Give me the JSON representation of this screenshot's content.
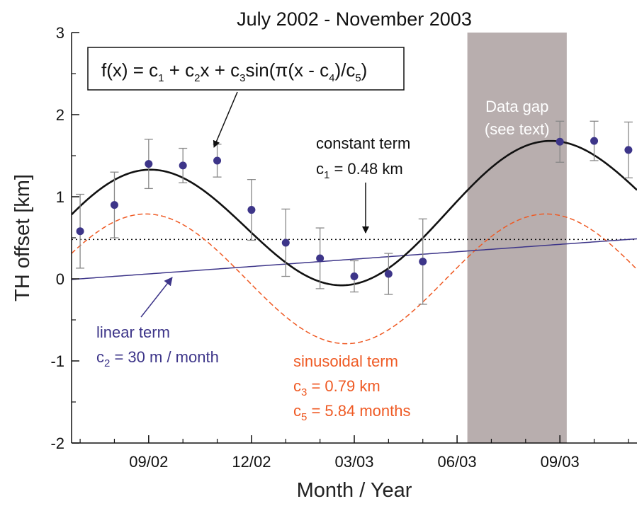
{
  "chart_data": {
    "type": "scatter",
    "title": "July 2002 - November 2003",
    "xlabel": "Month / Year",
    "ylabel": "TH offset [km]",
    "xlim": [
      -0.25,
      16.25
    ],
    "ylim": [
      -2,
      3
    ],
    "x_ticks": [
      {
        "x": 2,
        "label": "09/02"
      },
      {
        "x": 5,
        "label": "12/02"
      },
      {
        "x": 8,
        "label": "03/03"
      },
      {
        "x": 11,
        "label": "06/03"
      },
      {
        "x": 14,
        "label": "09/03"
      }
    ],
    "y_ticks": [
      {
        "y": 3,
        "label": "3"
      },
      {
        "y": 2,
        "label": "2"
      },
      {
        "y": 1,
        "label": "1"
      },
      {
        "y": 0,
        "label": "0"
      },
      {
        "y": -1,
        "label": "-1"
      },
      {
        "y": -2,
        "label": "-2"
      }
    ],
    "observations": {
      "color": "#3d3589",
      "points": [
        {
          "x": 0,
          "y": 0.58,
          "err": 0.45
        },
        {
          "x": 1,
          "y": 0.9,
          "err": 0.4
        },
        {
          "x": 2,
          "y": 1.4,
          "err": 0.3
        },
        {
          "x": 3,
          "y": 1.38,
          "err": 0.21
        },
        {
          "x": 4,
          "y": 1.44,
          "err": 0.2
        },
        {
          "x": 5,
          "y": 0.84,
          "err": 0.37
        },
        {
          "x": 6,
          "y": 0.44,
          "err": 0.41
        },
        {
          "x": 7,
          "y": 0.25,
          "err": 0.37
        },
        {
          "x": 8,
          "y": 0.03,
          "err": 0.19
        },
        {
          "x": 9,
          "y": 0.06,
          "err": 0.25
        },
        {
          "x": 10,
          "y": 0.21,
          "err": 0.52
        },
        {
          "x": 14,
          "y": 1.67,
          "err": 0.25
        },
        {
          "x": 15,
          "y": 1.68,
          "err": 0.24
        },
        {
          "x": 16,
          "y": 1.57,
          "err": 0.34
        }
      ]
    },
    "model": {
      "c1": 0.48,
      "c2": 0.03,
      "c3": 0.79,
      "c4": -1.0,
      "c5": 5.84
    },
    "series": [
      {
        "role": "fit",
        "color": "#111111",
        "style": "solid"
      },
      {
        "role": "constant",
        "color": "#111111",
        "style": "dotted"
      },
      {
        "role": "linear",
        "color": "#3d3589",
        "style": "solid"
      },
      {
        "role": "sinusoidal",
        "color": "#ef5a24",
        "style": "dashed"
      }
    ],
    "data_gap": {
      "x_start": 11.3,
      "x_end": 14.2,
      "color": "#b8aeae",
      "label_line1": "Data gap",
      "label_line2": "(see text)"
    },
    "grid": false
  },
  "annotations": {
    "formula": {
      "part1": "f(x) = c",
      "sub1": "1",
      "part2": " + c",
      "sub2": "2",
      "part3": "x + c",
      "sub3": "3",
      "part4": "sin(π(x - c",
      "sub4": "4",
      "part5": ")/c",
      "sub5": "5",
      "part6": ")"
    },
    "constant": {
      "line1": "constant term",
      "c_main": "c",
      "c_sub": "1",
      "c_value": " = 0.48 km"
    },
    "linear": {
      "line1": "linear term",
      "c_main": "c",
      "c_sub": "2",
      "c_value": " = 30 m / month"
    },
    "sinusoidal": {
      "line1": "sinusoidal term",
      "c3_main": "c",
      "c3_sub": "3",
      "c3_value": " = 0.79 km",
      "c5_main": "c",
      "c5_sub": "5",
      "c5_value": " = 5.84 months"
    }
  }
}
